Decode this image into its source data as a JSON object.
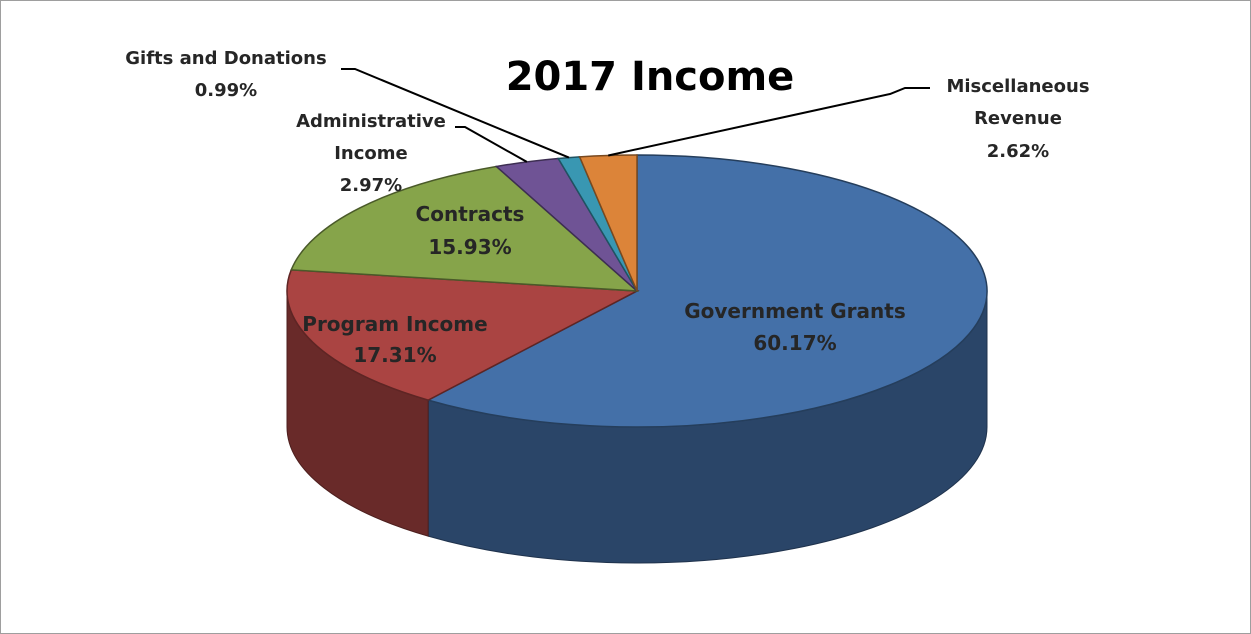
{
  "chart_data": {
    "type": "pie",
    "title": "2017 Income",
    "three_d": true,
    "slices": [
      {
        "name": "Government Grants",
        "value": 60.17,
        "label": "60.17%",
        "color": "#4470a8"
      },
      {
        "name": "Program Income",
        "value": 17.31,
        "label": "17.31%",
        "color": "#aa4442"
      },
      {
        "name": "Contracts",
        "value": 15.93,
        "label": "15.93%",
        "color": "#86a44a"
      },
      {
        "name": "Administrative Income",
        "value": 2.97,
        "label": "2.97%",
        "color": "#6f5395"
      },
      {
        "name": "Gifts and Donations",
        "value": 0.99,
        "label": "0.99%",
        "color": "#3997b2"
      },
      {
        "name": "Miscellaneous Revenue",
        "value": 2.62,
        "label": "2.62%",
        "color": "#dc8439"
      }
    ],
    "label_lines": {
      "government": [
        "Government Grants"
      ],
      "program": [
        "Program Income"
      ],
      "contracts": [
        "Contracts"
      ],
      "administrative": [
        "Administrative",
        "Income"
      ],
      "gifts": [
        "Gifts and Donations"
      ],
      "misc": [
        "Miscellaneous",
        "Revenue"
      ]
    }
  }
}
